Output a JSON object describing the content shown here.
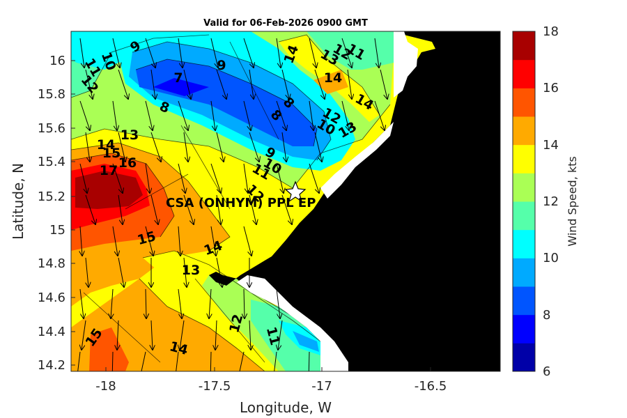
{
  "map": {
    "title": "Valid for 06-Feb-2026 0900 GMT",
    "xlabel": "Longitude, W",
    "ylabel": "Latitude, N",
    "x_ticks": [
      "-18",
      "-17.5",
      "-17",
      "-16.5"
    ],
    "y_ticks": [
      "16",
      "15.8",
      "15.6",
      "15.4",
      "15.2",
      "15",
      "14.8",
      "14.6",
      "14.4",
      "14.2"
    ],
    "station_label": "CSA (ONHYM) PPL EP",
    "land_color": "#000000",
    "station_marker": "star-icon",
    "contour_labels": [
      "9",
      "9",
      "10",
      "11",
      "12",
      "7",
      "8",
      "8",
      "8",
      "14",
      "13",
      "12",
      "11",
      "14",
      "14",
      "12",
      "10",
      "13",
      "13",
      "14",
      "15",
      "16",
      "17",
      "9",
      "10",
      "11",
      "12",
      "15",
      "14",
      "13",
      "12",
      "11",
      "15",
      "14"
    ]
  },
  "colorbar": {
    "label": "Wind Speed, kts",
    "ticks": [
      "18",
      "16",
      "14",
      "12",
      "10",
      "8",
      "6"
    ],
    "range": [
      6,
      18
    ],
    "colors": [
      "#0000a8",
      "#0000ff",
      "#0055ff",
      "#00aaff",
      "#00ffff",
      "#55ffaa",
      "#aaff55",
      "#ffff00",
      "#ffaa00",
      "#ff5500",
      "#ff0000",
      "#a80000"
    ]
  }
}
